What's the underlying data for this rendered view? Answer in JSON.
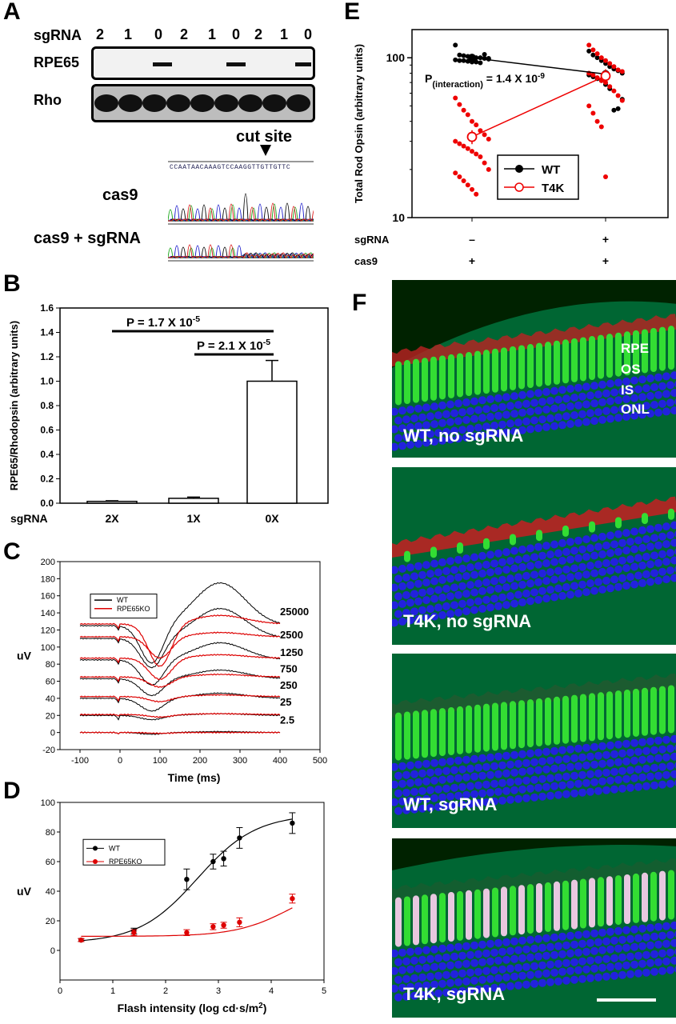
{
  "panel_labels": {
    "A": "A",
    "B": "B",
    "C": "C",
    "D": "D",
    "E": "E",
    "F": "F"
  },
  "panelA": {
    "sgrna_label": "sgRNA",
    "lanes": [
      "2",
      "1",
      "0",
      "2",
      "1",
      "0",
      "2",
      "1",
      "0"
    ],
    "rpe65_label": "RPE65",
    "rho_label": "Rho",
    "cut_site_label": "cut site",
    "sequence": "CCAATAACAAAGTCCAAGGTTGTTGTTC",
    "cas9_label": "cas9",
    "cas9_sgrna_label": "cas9 + sgRNA"
  },
  "panelB": {
    "p1": "P = 1.7 X 10",
    "p1_exp": "-5",
    "p2": "P = 2.1 X 10",
    "p2_exp": "-5",
    "sgrna_label": "sgRNA"
  },
  "panelC": {
    "legend": [
      "WT",
      "RPE65KO"
    ],
    "intensity_labels": [
      "25000",
      "2500",
      "1250",
      "750",
      "250",
      "25",
      "2.5"
    ]
  },
  "panelE": {
    "p_text": "P",
    "p_sub": "(interaction)",
    "p_val": " = 1.4 X 10",
    "p_exp": "-9",
    "legend": [
      "WT",
      "T4K"
    ],
    "row1_label": "sgRNA",
    "row1_values": [
      "–",
      "+"
    ],
    "row2_label": "cas9",
    "row2_values": [
      "+",
      "+"
    ]
  },
  "panelF": {
    "layers": [
      "RPE",
      "OS",
      "IS",
      "ONL"
    ],
    "captions": [
      "WT, no sgRNA",
      "T4K, no sgRNA",
      "WT, sgRNA",
      "T4K, sgRNA"
    ]
  },
  "chart_data": [
    {
      "type": "bar",
      "panel": "B",
      "categories": [
        "2X",
        "1X",
        "0X"
      ],
      "values": [
        0.015,
        0.04,
        1.0
      ],
      "errors": [
        0.005,
        0.01,
        0.17
      ],
      "ylabel": "RPE65/Rhodopsin (arbitrary units)",
      "ylim": [
        0,
        1.6
      ],
      "yticks": [
        "0.0",
        "0.2",
        "0.4",
        "0.6",
        "0.8",
        "1.0",
        "1.2",
        "1.4",
        "1.6"
      ]
    },
    {
      "type": "line",
      "panel": "C",
      "xlabel": "Time (ms)",
      "ylabel": "uV",
      "xlim": [
        -150,
        500
      ],
      "ylim": [
        -20,
        200
      ],
      "xticks": [
        "-100",
        "0",
        "100",
        "200",
        "300",
        "400",
        "500"
      ],
      "yticks": [
        "-20",
        "0",
        "20",
        "40",
        "60",
        "80",
        "100",
        "120",
        "140",
        "160",
        "180",
        "200"
      ],
      "baselines_wt": [
        125,
        110,
        85,
        63,
        40,
        20,
        0
      ],
      "baselines_ko": [
        127,
        112,
        87,
        65,
        42,
        21,
        0
      ],
      "series": [
        {
          "name": "WT"
        },
        {
          "name": "RPE65KO"
        }
      ]
    },
    {
      "type": "scatter",
      "panel": "D",
      "xlabel": "Flash intensity (log cd·s/m",
      "xlabel_sup": "2",
      "xlabel_end": ")",
      "ylabel": "uV",
      "xlim": [
        0,
        5
      ],
      "ylim": [
        -20,
        100
      ],
      "xticks": [
        "0",
        "1",
        "2",
        "3",
        "4",
        "5"
      ],
      "yticks": [
        "0",
        "20",
        "40",
        "60",
        "80",
        "100"
      ],
      "series": [
        {
          "name": "WT",
          "x": [
            0.4,
            1.4,
            2.4,
            2.9,
            3.1,
            3.4,
            4.4
          ],
          "y": [
            7,
            13,
            48,
            60,
            62,
            76,
            86
          ],
          "err": [
            1,
            2,
            7,
            5,
            5,
            7,
            7
          ]
        },
        {
          "name": "RPE65KO",
          "x": [
            0.4,
            1.4,
            2.4,
            2.9,
            3.1,
            3.4,
            4.4
          ],
          "y": [
            7,
            12,
            12,
            16,
            17,
            19,
            35
          ],
          "err": [
            1,
            2,
            2,
            2,
            2,
            3,
            3
          ]
        }
      ]
    },
    {
      "type": "scatter",
      "panel": "E",
      "ylabel": "Total Rod Opsin (arbitrary units)",
      "yscale": "log",
      "ylim": [
        10,
        150
      ],
      "yticks": [
        "10",
        "100"
      ],
      "groups": [
        "no sgRNA",
        "sgRNA"
      ],
      "series": [
        {
          "name": "WT",
          "mean": [
            100,
            79
          ],
          "points_g1": [
            120,
            104,
            103,
            102,
            101,
            100,
            100,
            99,
            98,
            97,
            96,
            96,
            95,
            94,
            94,
            93,
            105,
            99
          ],
          "points_g2": [
            110,
            104,
            100,
            96,
            92,
            88,
            85,
            83,
            80,
            78,
            76,
            74,
            72,
            68,
            64,
            47,
            48,
            55
          ]
        },
        {
          "name": "T4K",
          "mean": [
            32,
            77
          ],
          "points_g1": [
            56,
            51,
            47,
            44,
            40,
            38,
            35,
            33,
            31,
            30,
            29,
            28,
            27,
            26,
            25,
            24,
            22,
            20,
            19,
            18,
            17,
            16,
            15,
            14
          ],
          "points_g2": [
            120,
            112,
            106,
            100,
            96,
            92,
            88,
            84,
            82,
            80,
            78,
            75,
            72,
            70,
            66,
            62,
            58,
            54,
            50,
            45,
            40,
            37,
            18
          ]
        }
      ]
    }
  ]
}
